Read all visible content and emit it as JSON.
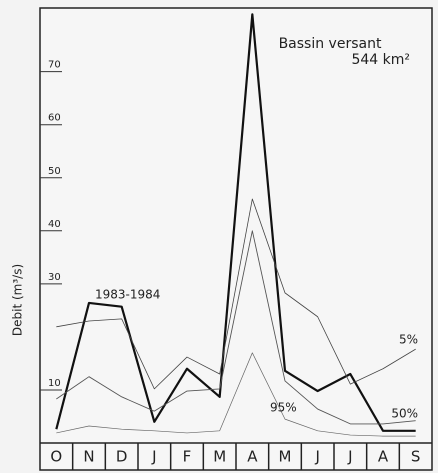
{
  "chart_data": {
    "type": "line",
    "title": "Bassin versant",
    "subtitle": "544 km²",
    "y_label": "Debit (m³/s)",
    "categories": [
      "O",
      "N",
      "D",
      "J",
      "F",
      "M",
      "A",
      "M",
      "J",
      "J",
      "A",
      "S"
    ],
    "ylim": [
      0,
      82
    ],
    "yticks": [
      10,
      30,
      40,
      50,
      60,
      70
    ],
    "color": "#222222",
    "series": [
      {
        "name": "1983-1984",
        "color": "#111111",
        "values": [
          2.6,
          26.4,
          25.7,
          4,
          14,
          8.7,
          80.8,
          13.6,
          9.8,
          13,
          2.3,
          2.3
        ]
      },
      {
        "name": "5%",
        "color": "#444444",
        "values": [
          21.9,
          23,
          23.4,
          10.2,
          16.2,
          13,
          46,
          28.3,
          23.8,
          11.1,
          14,
          17.7
        ]
      },
      {
        "name": "50%",
        "color": "#555555",
        "values": [
          8.3,
          12.5,
          8.7,
          6,
          9.8,
          10.2,
          40,
          11.7,
          6.4,
          3.6,
          3.6,
          4.2
        ]
      },
      {
        "name": "95%",
        "color": "#666666",
        "values": [
          1.9,
          3.2,
          2.6,
          2.3,
          1.9,
          2.3,
          17,
          4.5,
          2.3,
          1.5,
          1.3,
          1.3
        ]
      }
    ]
  }
}
